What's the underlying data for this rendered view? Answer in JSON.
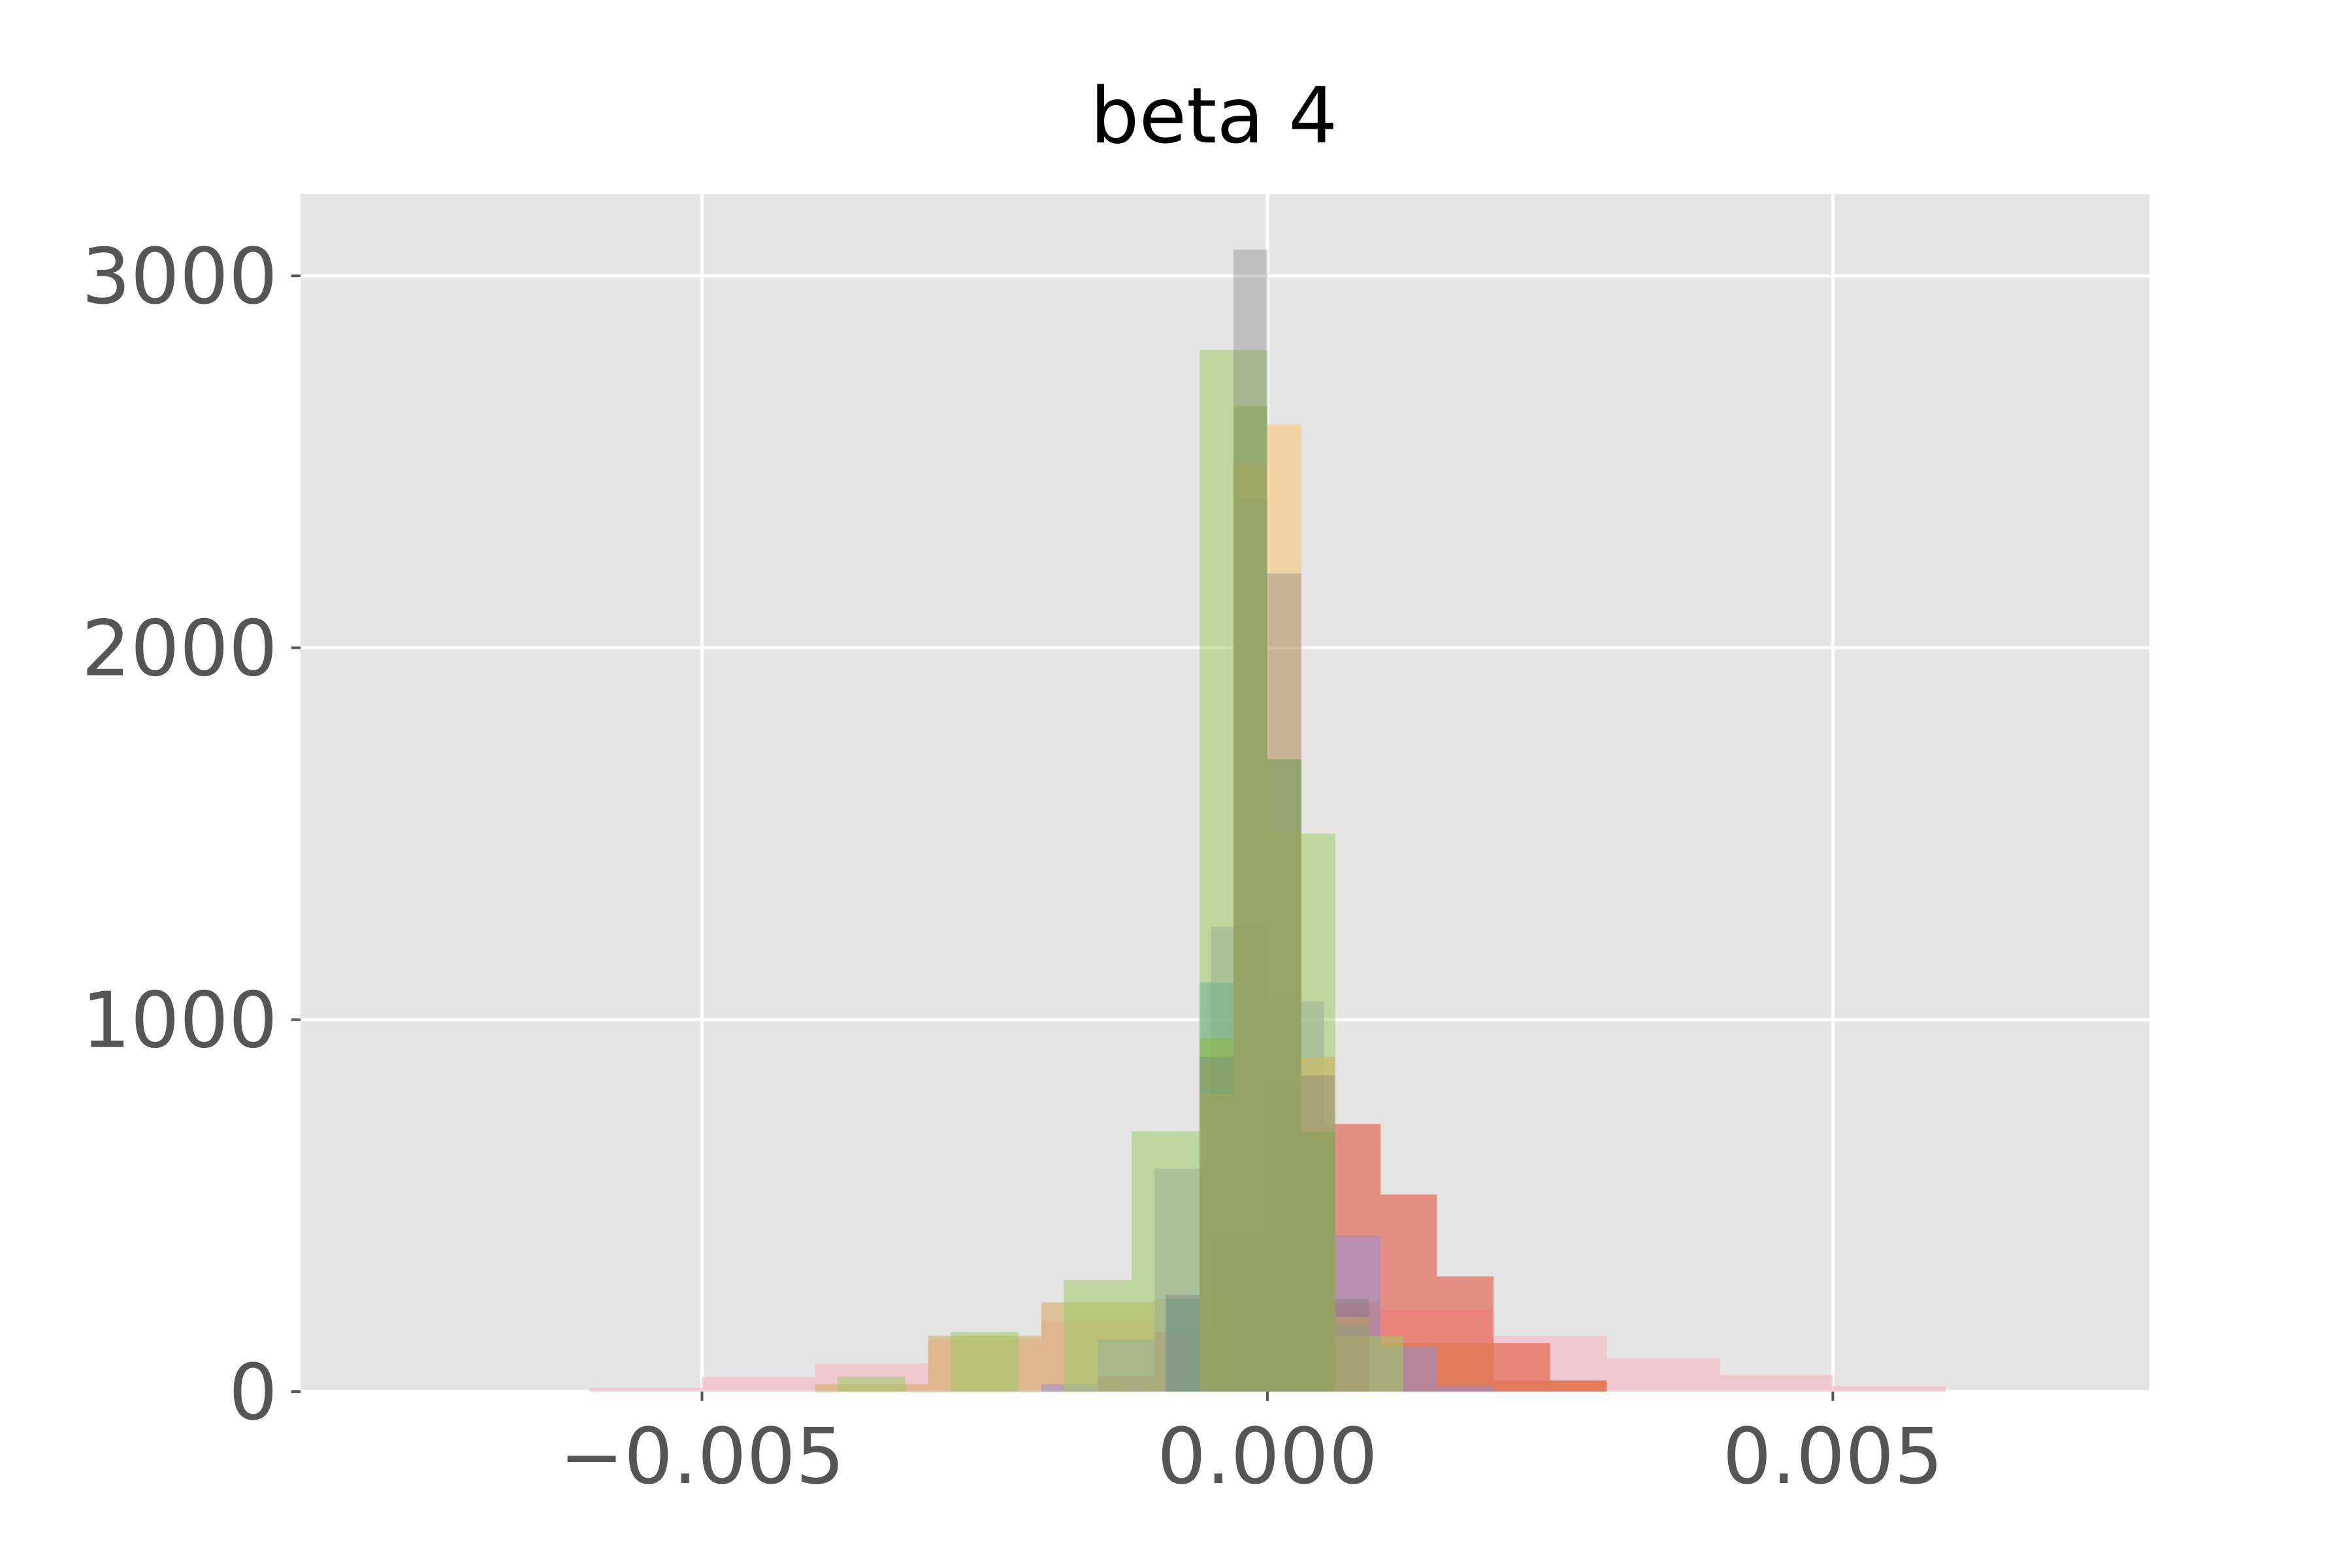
{
  "chart_data": {
    "type": "bar",
    "subtype": "overlaid-histogram",
    "title": "beta 4",
    "xlabel": "",
    "ylabel": "",
    "xlim": [
      -0.00855,
      0.0078
    ],
    "ylim": [
      0,
      3220
    ],
    "xticks": [
      {
        "value": -0.005,
        "label": "−0.005"
      },
      {
        "value": 0.0,
        "label": "0.000"
      },
      {
        "value": 0.005,
        "label": "0.005"
      }
    ],
    "yticks": [
      {
        "value": 0,
        "label": "0"
      },
      {
        "value": 1000,
        "label": "1000"
      },
      {
        "value": 2000,
        "label": "2000"
      },
      {
        "value": 3000,
        "label": "3000"
      }
    ],
    "grid": true,
    "legend": "none",
    "colors": {
      "background": "#e5e5e5",
      "grid": "#ffffff",
      "tick_text": "#555555",
      "title_text": "#000000"
    },
    "series": [
      {
        "color": "#f7b6c2",
        "opacity": 0.6,
        "x": [
          -0.0055,
          -0.0045,
          -0.0035,
          -0.0025,
          -0.0015,
          -0.0005,
          0.0005,
          0.0015,
          0.0025,
          0.0035,
          0.0045,
          0.0055
        ],
        "values": [
          10,
          40,
          75,
          140,
          190,
          230,
          235,
          220,
          150,
          90,
          45,
          15
        ],
        "bin_width": 0.001
      },
      {
        "color": "#d4a65a",
        "opacity": 0.55,
        "x": [
          -0.0035,
          -0.0025,
          -0.0015,
          -0.0005,
          0.0005,
          0.0015,
          0.0025
        ],
        "values": [
          20,
          150,
          240,
          250,
          240,
          130,
          30
        ],
        "bin_width": 0.001
      },
      {
        "color": "#e24a33",
        "opacity": 0.55,
        "x": [
          -0.00125,
          -0.00075,
          -0.00025,
          0.00025,
          0.00075,
          0.00125,
          0.00175,
          0.00225,
          0.00275
        ],
        "values": [
          40,
          160,
          420,
          820,
          720,
          530,
          310,
          130,
          30
        ],
        "bin_width": 0.0005
      },
      {
        "color": "#988ed5",
        "opacity": 0.55,
        "x": [
          -0.00175,
          -0.00125,
          -0.00075,
          -0.00025,
          0.00025,
          0.00075,
          0.00125,
          0.00175
        ],
        "values": [
          20,
          140,
          600,
          1250,
          1050,
          420,
          120,
          15
        ],
        "bin_width": 0.0005
      },
      {
        "color": "#348abd",
        "opacity": 0.55,
        "x": [
          -0.00075,
          -0.00045,
          -0.00015,
          0.00015,
          0.00045,
          0.00075
        ],
        "values": [
          250,
          1100,
          2400,
          1700,
          900,
          180
        ],
        "bin_width": 0.0003
      },
      {
        "color": "#9ccc65",
        "opacity": 0.55,
        "x": [
          -0.0035,
          -0.0025,
          -0.0015,
          -0.0009,
          -0.0003,
          0.0003,
          0.0009
        ],
        "values": [
          40,
          160,
          300,
          700,
          2800,
          1500,
          150
        ],
        "bin_width": 0.0006
      },
      {
        "color": "#fbc15e",
        "opacity": 0.5,
        "x": [
          -0.00045,
          -0.00015,
          0.00015,
          0.00045,
          0.00075
        ],
        "values": [
          800,
          2500,
          2600,
          900,
          200
        ],
        "bin_width": 0.0003
      },
      {
        "color": "#8eba42",
        "opacity": 0.55,
        "x": [
          -0.00045,
          -0.00015,
          0.00015,
          0.00045
        ],
        "values": [
          950,
          2650,
          1700,
          700
        ],
        "bin_width": 0.0003
      },
      {
        "color": "#777777",
        "opacity": 0.35,
        "x": [
          -0.00075,
          -0.00045,
          -0.00015,
          0.00015,
          0.00045,
          0.00075
        ],
        "values": [
          260,
          900,
          3070,
          2200,
          850,
          250
        ],
        "bin_width": 0.0003
      }
    ]
  }
}
